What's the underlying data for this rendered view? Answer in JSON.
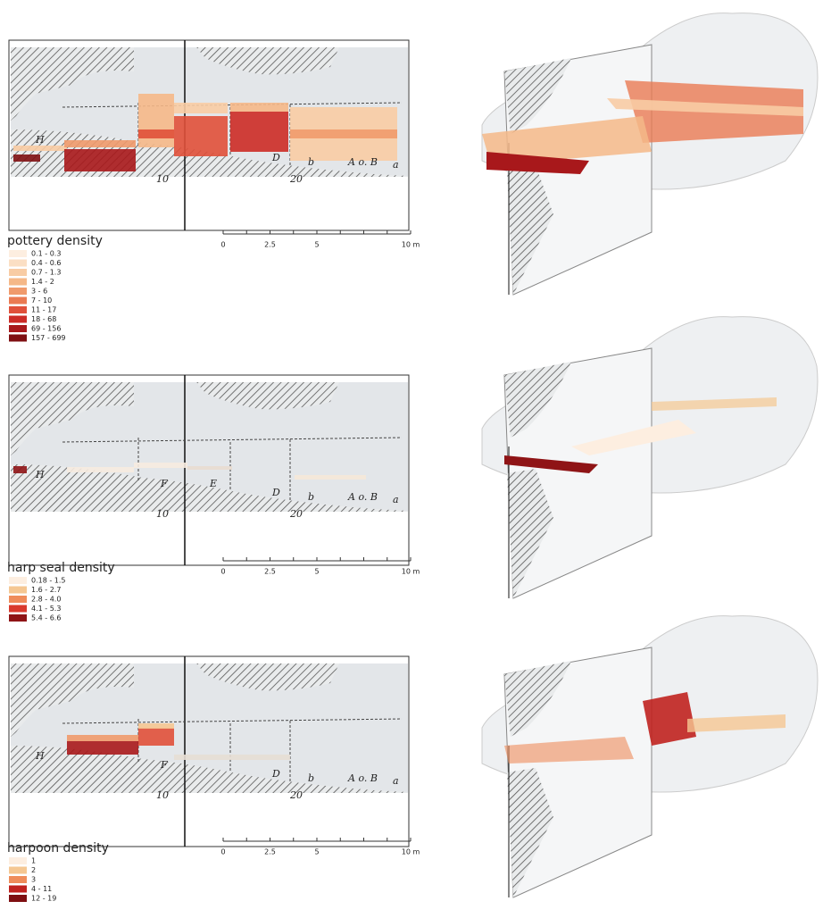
{
  "panels": [
    {
      "legend": {
        "title": "pottery density",
        "items": [
          {
            "label": "0.1 - 0.3",
            "color": "#fdeee0"
          },
          {
            "label": "0.4 - 0.6",
            "color": "#fbdfc4"
          },
          {
            "label": "0.7 - 1.3",
            "color": "#f8cca4"
          },
          {
            "label": "1.4 - 2",
            "color": "#f5b888"
          },
          {
            "label": "3 - 6",
            "color": "#f09a6c"
          },
          {
            "label": "7 - 10",
            "color": "#ea7a52"
          },
          {
            "label": "11 - 17",
            "color": "#e0503a"
          },
          {
            "label": "18 - 68",
            "color": "#cc2b26"
          },
          {
            "label": "69 - 156",
            "color": "#a8181b"
          },
          {
            "label": "157 - 699",
            "color": "#7f0f12"
          }
        ]
      },
      "annotations": [
        "H",
        "D",
        "b",
        "A o. B",
        "a",
        "10",
        "20"
      ],
      "scale_bar": [
        "0",
        "2.5",
        "5",
        "10 m"
      ]
    },
    {
      "legend": {
        "title": "harp seal density",
        "items": [
          {
            "label": "0.18 - 1.5",
            "color": "#fdeee0"
          },
          {
            "label": "1.6 - 2.7",
            "color": "#f5c792"
          },
          {
            "label": "2.8 - 4.0",
            "color": "#ef8c5a"
          },
          {
            "label": "4.1 - 5.3",
            "color": "#d93a2d"
          },
          {
            "label": "5.4 - 6.6",
            "color": "#8f1416"
          }
        ]
      },
      "annotations": [
        "H",
        "F",
        "E",
        "D",
        "b",
        "A o. B",
        "a",
        "10",
        "20"
      ],
      "scale_bar": [
        "0",
        "2.5",
        "5",
        "10 m"
      ]
    },
    {
      "legend": {
        "title": "harpoon density",
        "items": [
          {
            "label": "1",
            "color": "#fdeee0"
          },
          {
            "label": "2",
            "color": "#f5c792"
          },
          {
            "label": "3",
            "color": "#ef8c5a"
          },
          {
            "label": "4 - 11",
            "color": "#c0221f"
          },
          {
            "label": "12 - 19",
            "color": "#7f0f12"
          }
        ]
      },
      "annotations": [
        "H",
        "F",
        "D",
        "b",
        "A o. B",
        "a",
        "10",
        "20"
      ],
      "scale_bar": [
        "0",
        "2.5",
        "5",
        "10 m"
      ]
    }
  ]
}
